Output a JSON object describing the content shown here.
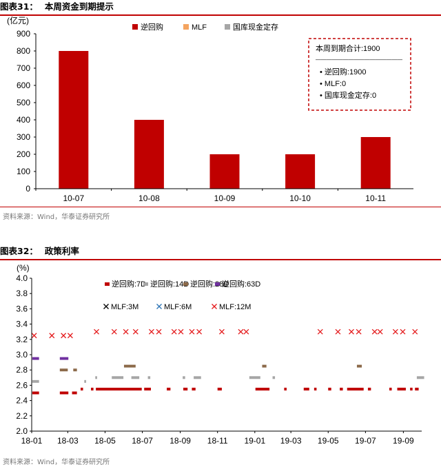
{
  "chart1": {
    "header_label": "图表31：",
    "header_title": "本周资金到期提示",
    "source": "资料来源：Wind，华泰证券研究所",
    "colors": {
      "rr": "#c00000",
      "mlf": "#f4a460",
      "gk": "#a6a6a6"
    },
    "info_box": {
      "title": "本周到期合计:1900",
      "divider": "————————————————",
      "items": [
        "• 逆回购:1900",
        "• MLF:0",
        "• 国库现金定存:0"
      ]
    }
  },
  "chart2": {
    "header_label": "图表32：",
    "header_title": "政策利率",
    "source": "资料来源：Wind，华泰证券研究所",
    "colors": {
      "rr7": "#c00000",
      "rr14": "#a6a6a6",
      "rr28": "#8c6a4a",
      "rr63": "#7030a0",
      "mlf3": "#000000",
      "mlf6": "#2e75b6",
      "mlf12": "#e41a1c"
    }
  },
  "chart_data": [
    {
      "type": "bar",
      "ylabel": "(亿元)",
      "ylim": [
        0,
        900
      ],
      "yticks": [
        0,
        100,
        200,
        300,
        400,
        500,
        600,
        700,
        800,
        900
      ],
      "categories": [
        "10-07",
        "10-08",
        "10-09",
        "10-10",
        "10-11"
      ],
      "legend": [
        "逆回购",
        "MLF",
        "国库现金定存"
      ],
      "legend_position": "top",
      "series": [
        {
          "name": "逆回购",
          "values": [
            800,
            400,
            200,
            200,
            300
          ]
        },
        {
          "name": "MLF",
          "values": [
            0,
            0,
            0,
            0,
            0
          ]
        },
        {
          "name": "国库现金定存",
          "values": [
            0,
            0,
            0,
            0,
            0
          ]
        }
      ]
    },
    {
      "type": "scatter",
      "ylabel": "(%)",
      "ylim": [
        2.0,
        4.0
      ],
      "yticks": [
        2.0,
        2.2,
        2.4,
        2.6,
        2.8,
        3.0,
        3.2,
        3.4,
        3.6,
        3.8,
        4.0
      ],
      "xlim": [
        "2018-01-01",
        "2019-10-01"
      ],
      "xticks": [
        "18-01",
        "18-03",
        "18-05",
        "18-07",
        "18-09",
        "18-11",
        "19-01",
        "19-03",
        "19-05",
        "19-07",
        "19-09"
      ],
      "legend_position": "top",
      "series": [
        {
          "name": "逆回购:7D",
          "marker": "dash",
          "segments": [
            [
              "2018-01-02",
              "2018-01-13",
              2.5
            ],
            [
              "2018-02-16",
              "2018-03-02",
              2.5
            ],
            [
              "2018-03-08",
              "2018-03-16",
              2.5
            ],
            [
              "2018-03-22",
              "2018-03-26",
              2.55
            ],
            [
              "2018-04-08",
              "2018-04-12",
              2.55
            ],
            [
              "2018-04-16",
              "2018-06-30",
              2.55
            ],
            [
              "2018-07-04",
              "2018-07-15",
              2.55
            ],
            [
              "2018-08-10",
              "2018-08-16",
              2.55
            ],
            [
              "2018-09-06",
              "2018-09-13",
              2.55
            ],
            [
              "2018-09-20",
              "2018-09-26",
              2.55
            ],
            [
              "2018-11-01",
              "2018-11-08",
              2.55
            ],
            [
              "2019-01-02",
              "2019-01-25",
              2.55
            ],
            [
              "2019-02-18",
              "2019-02-22",
              2.55
            ],
            [
              "2019-03-22",
              "2019-03-31",
              2.55
            ],
            [
              "2019-04-08",
              "2019-04-12",
              2.55
            ],
            [
              "2019-05-01",
              "2019-05-06",
              2.55
            ],
            [
              "2019-05-20",
              "2019-05-25",
              2.55
            ],
            [
              "2019-06-01",
              "2019-06-28",
              2.55
            ],
            [
              "2019-07-05",
              "2019-07-10",
              2.55
            ],
            [
              "2019-08-09",
              "2019-08-13",
              2.55
            ],
            [
              "2019-08-22",
              "2019-09-05",
              2.55
            ],
            [
              "2019-09-12",
              "2019-09-16",
              2.55
            ],
            [
              "2019-09-20",
              "2019-09-26",
              2.55
            ]
          ]
        },
        {
          "name": "逆回购:14D",
          "marker": "dash",
          "segments": [
            [
              "2018-01-02",
              "2018-01-13",
              2.65
            ],
            [
              "2018-03-28",
              "2018-03-31",
              2.65
            ],
            [
              "2018-04-15",
              "2018-04-18",
              2.7
            ],
            [
              "2018-05-12",
              "2018-05-31",
              2.7
            ],
            [
              "2018-06-13",
              "2018-06-26",
              2.7
            ],
            [
              "2018-07-10",
              "2018-07-14",
              2.7
            ],
            [
              "2018-09-05",
              "2018-09-09",
              2.7
            ],
            [
              "2018-09-23",
              "2018-10-05",
              2.7
            ],
            [
              "2018-12-23",
              "2019-01-10",
              2.7
            ],
            [
              "2019-01-30",
              "2019-02-03",
              2.7
            ],
            [
              "2019-09-23",
              "2019-10-05",
              2.7
            ]
          ]
        },
        {
          "name": "逆回购:28D",
          "marker": "dash",
          "segments": [
            [
              "2018-02-16",
              "2018-03-01",
              2.8
            ],
            [
              "2018-03-10",
              "2018-03-16",
              2.8
            ],
            [
              "2018-06-01",
              "2018-06-20",
              2.85
            ],
            [
              "2019-01-13",
              "2019-01-20",
              2.85
            ],
            [
              "2019-06-17",
              "2019-06-25",
              2.85
            ]
          ]
        },
        {
          "name": "逆回购:63D",
          "marker": "dash",
          "segments": [
            [
              "2018-01-02",
              "2018-01-13",
              2.95
            ],
            [
              "2018-02-16",
              "2018-03-02",
              2.95
            ]
          ]
        },
        {
          "name": "MLF:3M",
          "marker": "x",
          "points": []
        },
        {
          "name": "MLF:6M",
          "marker": "x",
          "points": []
        },
        {
          "name": "MLF:12M",
          "marker": "x",
          "points": [
            [
              "2018-01-05",
              3.25
            ],
            [
              "2018-02-03",
              3.25
            ],
            [
              "2018-02-22",
              3.25
            ],
            [
              "2018-03-05",
              3.25
            ],
            [
              "2018-04-17",
              3.3
            ],
            [
              "2018-05-16",
              3.3
            ],
            [
              "2018-06-04",
              3.3
            ],
            [
              "2018-06-20",
              3.3
            ],
            [
              "2018-07-16",
              3.3
            ],
            [
              "2018-07-28",
              3.3
            ],
            [
              "2018-08-22",
              3.3
            ],
            [
              "2018-09-02",
              3.3
            ],
            [
              "2018-09-20",
              3.3
            ],
            [
              "2018-10-02",
              3.3
            ],
            [
              "2018-11-08",
              3.3
            ],
            [
              "2018-12-09",
              3.3
            ],
            [
              "2018-12-18",
              3.3
            ],
            [
              "2019-04-18",
              3.3
            ],
            [
              "2019-05-17",
              3.3
            ],
            [
              "2019-06-08",
              3.3
            ],
            [
              "2019-06-20",
              3.3
            ],
            [
              "2019-07-16",
              3.3
            ],
            [
              "2019-07-25",
              3.3
            ],
            [
              "2019-08-19",
              3.3
            ],
            [
              "2019-08-31",
              3.3
            ],
            [
              "2019-09-20",
              3.3
            ]
          ]
        }
      ]
    }
  ]
}
